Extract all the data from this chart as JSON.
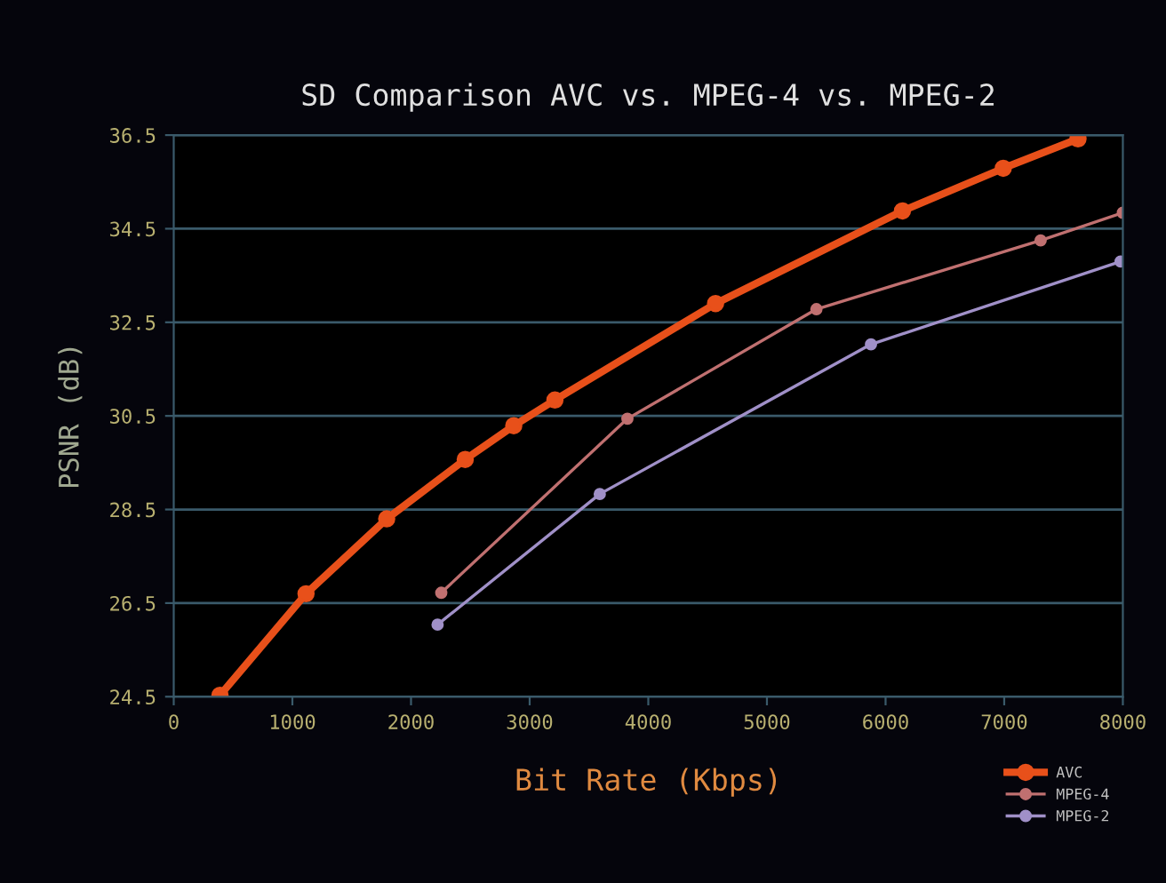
{
  "chart_data": {
    "type": "line",
    "title": "SD Comparison AVC vs. MPEG-4 vs. MPEG-2",
    "xlabel": "Bit Rate (Kbps)",
    "ylabel": "PSNR (dB)",
    "series": [
      {
        "name": "AVC",
        "color": "#e8501a",
        "x": [
          390,
          1115,
          1795,
          2457,
          2866,
          3213,
          4567,
          6142,
          6992,
          7622
        ],
        "values": [
          24.53,
          26.7,
          28.3,
          29.57,
          30.29,
          30.84,
          32.9,
          34.88,
          35.79,
          36.42
        ]
      },
      {
        "name": "MPEG-4",
        "color": "#c07070",
        "x": [
          2255,
          3824,
          5417,
          7307,
          8000
        ],
        "values": [
          26.72,
          30.44,
          32.78,
          34.25,
          34.84
        ]
      },
      {
        "name": "MPEG-2",
        "color": "#a090c8",
        "x": [
          2224,
          3591,
          5877,
          7981
        ],
        "values": [
          26.04,
          28.83,
          32.03,
          33.8
        ]
      }
    ],
    "xlim": [
      0,
      8000
    ],
    "xticks": [
      0,
      1000,
      2000,
      3000,
      4000,
      5000,
      6000,
      7000,
      8000
    ],
    "ylim": [
      24.5,
      36.5
    ],
    "yticks": [
      24.5,
      26.5,
      28.5,
      30.5,
      32.5,
      34.5,
      36.5
    ],
    "grid": "y",
    "legend": "bottom right",
    "marker": "circle",
    "line_style": "solid"
  }
}
